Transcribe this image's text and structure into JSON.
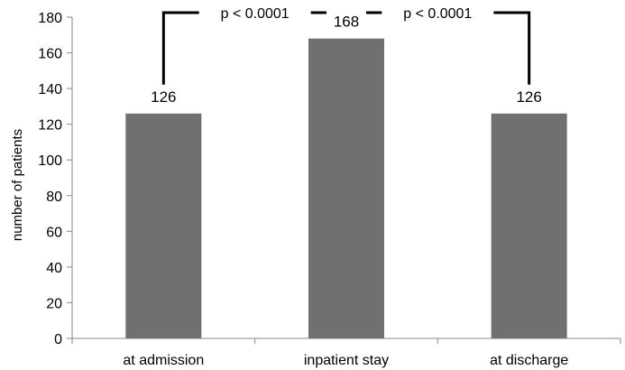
{
  "chart_data": {
    "type": "bar",
    "categories": [
      "at admission",
      "inpatient stay",
      "at discharge"
    ],
    "values": [
      126,
      168,
      126
    ],
    "data_labels": [
      "126",
      "168",
      "126"
    ],
    "title": "",
    "xlabel": "",
    "ylabel": "number of patients",
    "ylim": [
      0,
      180
    ],
    "yticks": [
      0,
      20,
      40,
      60,
      80,
      100,
      120,
      140,
      160,
      180
    ],
    "grid": false,
    "legend": "none",
    "bar_color": "#707070",
    "annotations": [
      {
        "from": "at admission",
        "to": "inpatient stay",
        "text": "p < 0.0001"
      },
      {
        "from": "inpatient stay",
        "to": "at discharge",
        "text": "p < 0.0001"
      }
    ]
  }
}
